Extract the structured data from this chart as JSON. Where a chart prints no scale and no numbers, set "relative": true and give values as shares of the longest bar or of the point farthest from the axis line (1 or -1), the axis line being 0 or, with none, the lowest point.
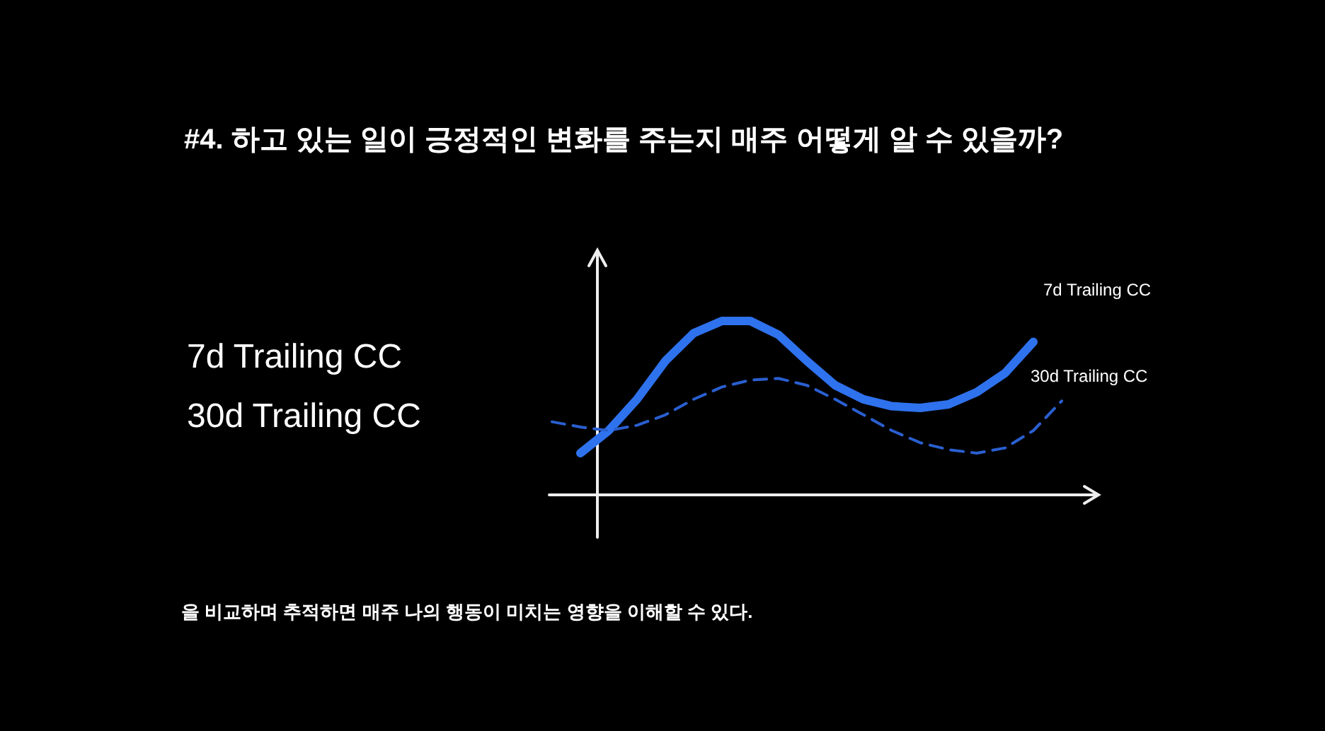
{
  "chart_data": {
    "type": "line",
    "relative": true,
    "title": "#4. 하고 있는 일이 긍정적인 변화를 주는지 매주 어떻게 알 수 있을까?",
    "annotations": [
      "7d Trailing CC",
      "30d Trailing CC",
      "을 비교하며 추적하면 매주 나의 행동이 미치는 영향을 이해할 수 있다."
    ],
    "categories": [
      null,
      null,
      null,
      null,
      null,
      null,
      null,
      null,
      null,
      null,
      null,
      null,
      null,
      null,
      null,
      null,
      null,
      null,
      null
    ],
    "series": [
      {
        "name": "7d Trailing CC",
        "color": "#2f72ee",
        "line_style": "solid",
        "values": [
          null,
          0.24,
          0.37,
          0.55,
          0.77,
          0.93,
          1,
          1,
          0.92,
          0.77,
          0.63,
          0.55,
          0.51,
          0.5,
          0.52,
          0.59,
          0.7,
          0.88,
          null
        ]
      },
      {
        "name": "30d Trailing CC",
        "color": "#2a5fd0",
        "line_style": "dashed",
        "values": [
          0.42,
          0.39,
          0.37,
          0.4,
          0.46,
          0.55,
          0.62,
          0.66,
          0.67,
          0.63,
          0.55,
          0.46,
          0.37,
          0.3,
          0.26,
          0.24,
          0.27,
          0.37,
          0.54
        ]
      }
    ]
  }
}
